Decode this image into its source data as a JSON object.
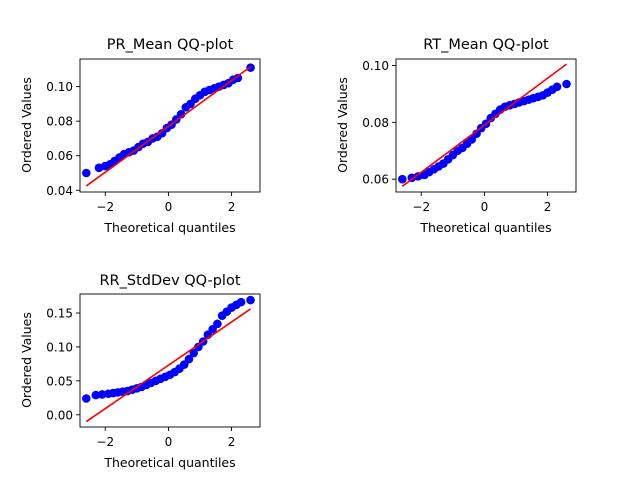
{
  "chart_data": [
    {
      "type": "scatter",
      "title": "PR_Mean QQ-plot",
      "xlabel": "Theoretical quantiles",
      "ylabel": "Ordered Values",
      "xlim": [
        -2.8,
        2.9
      ],
      "ylim": [
        0.039,
        0.116
      ],
      "xticks": [
        -2,
        0,
        2
      ],
      "xtick_labels": [
        "−2",
        "0",
        "2"
      ],
      "yticks": [
        0.04,
        0.06,
        0.08,
        0.1
      ],
      "ytick_labels": [
        "0.04",
        "0.06",
        "0.08",
        "0.10"
      ],
      "fit_line": {
        "x": [
          -2.6,
          2.6
        ],
        "y": [
          0.0425,
          0.1115
        ],
        "color": "#ff0000"
      },
      "points": {
        "color": "#0000ff",
        "x": [
          -2.6,
          -2.2,
          -2.0,
          -1.85,
          -1.7,
          -1.55,
          -1.4,
          -1.25,
          -1.1,
          -0.95,
          -0.8,
          -0.65,
          -0.5,
          -0.35,
          -0.2,
          -0.05,
          0.1,
          0.25,
          0.4,
          0.55,
          0.7,
          0.85,
          1.0,
          1.15,
          1.3,
          1.45,
          1.6,
          1.75,
          1.9,
          2.05,
          2.2,
          2.6
        ],
        "y": [
          0.05,
          0.053,
          0.054,
          0.055,
          0.057,
          0.059,
          0.061,
          0.062,
          0.063,
          0.065,
          0.067,
          0.068,
          0.07,
          0.071,
          0.073,
          0.076,
          0.078,
          0.081,
          0.084,
          0.088,
          0.09,
          0.093,
          0.095,
          0.097,
          0.098,
          0.099,
          0.1,
          0.101,
          0.102,
          0.104,
          0.105,
          0.111
        ]
      }
    },
    {
      "type": "scatter",
      "title": "RT_Mean QQ-plot",
      "xlabel": "Theoretical quantiles",
      "ylabel": "Ordered Values",
      "xlim": [
        -2.8,
        2.9
      ],
      "ylim": [
        0.0555,
        0.1023
      ],
      "xticks": [
        -2,
        0,
        2
      ],
      "xtick_labels": [
        "−2",
        "0",
        "2"
      ],
      "yticks": [
        0.06,
        0.08,
        0.1
      ],
      "ytick_labels": [
        "0.06",
        "0.08",
        "0.10"
      ],
      "fit_line": {
        "x": [
          -2.6,
          2.6
        ],
        "y": [
          0.0575,
          0.1005
        ],
        "color": "#ff0000"
      },
      "points": {
        "color": "#0000ff",
        "x": [
          -2.6,
          -2.3,
          -2.1,
          -1.9,
          -1.75,
          -1.6,
          -1.45,
          -1.3,
          -1.15,
          -1.0,
          -0.85,
          -0.7,
          -0.55,
          -0.4,
          -0.25,
          -0.1,
          0.05,
          0.2,
          0.35,
          0.5,
          0.65,
          0.8,
          0.95,
          1.1,
          1.25,
          1.4,
          1.55,
          1.7,
          1.85,
          2.0,
          2.15,
          2.3,
          2.6
        ],
        "y": [
          0.06,
          0.0605,
          0.061,
          0.0615,
          0.0625,
          0.0635,
          0.0645,
          0.0655,
          0.067,
          0.0685,
          0.07,
          0.071,
          0.0725,
          0.074,
          0.076,
          0.078,
          0.0795,
          0.0815,
          0.083,
          0.0845,
          0.0855,
          0.086,
          0.0865,
          0.087,
          0.0875,
          0.088,
          0.0885,
          0.089,
          0.0895,
          0.0905,
          0.0915,
          0.0925,
          0.0935
        ]
      }
    },
    {
      "type": "scatter",
      "title": "RR_StdDev QQ-plot",
      "xlabel": "Theoretical quantiles",
      "ylabel": "Ordered Values",
      "xlim": [
        -2.8,
        2.9
      ],
      "ylim": [
        -0.018,
        0.178
      ],
      "xticks": [
        -2,
        0,
        2
      ],
      "xtick_labels": [
        "−2",
        "0",
        "2"
      ],
      "yticks": [
        0.0,
        0.05,
        0.1,
        0.15
      ],
      "ytick_labels": [
        "0.00",
        "0.05",
        "0.10",
        "0.15"
      ],
      "fit_line": {
        "x": [
          -2.6,
          2.6
        ],
        "y": [
          -0.01,
          0.156
        ],
        "color": "#ff0000"
      },
      "points": {
        "color": "#0000ff",
        "x": [
          -2.6,
          -2.3,
          -2.1,
          -1.9,
          -1.75,
          -1.6,
          -1.45,
          -1.3,
          -1.15,
          -1.0,
          -0.85,
          -0.7,
          -0.55,
          -0.4,
          -0.25,
          -0.1,
          0.05,
          0.2,
          0.35,
          0.5,
          0.65,
          0.8,
          0.95,
          1.1,
          1.25,
          1.4,
          1.55,
          1.7,
          1.85,
          2.0,
          2.15,
          2.3,
          2.6
        ],
        "y": [
          0.024,
          0.029,
          0.03,
          0.031,
          0.032,
          0.033,
          0.034,
          0.035,
          0.037,
          0.039,
          0.041,
          0.044,
          0.047,
          0.05,
          0.053,
          0.056,
          0.059,
          0.063,
          0.068,
          0.074,
          0.082,
          0.091,
          0.1,
          0.108,
          0.118,
          0.126,
          0.134,
          0.146,
          0.152,
          0.158,
          0.162,
          0.166,
          0.169
        ]
      }
    }
  ]
}
